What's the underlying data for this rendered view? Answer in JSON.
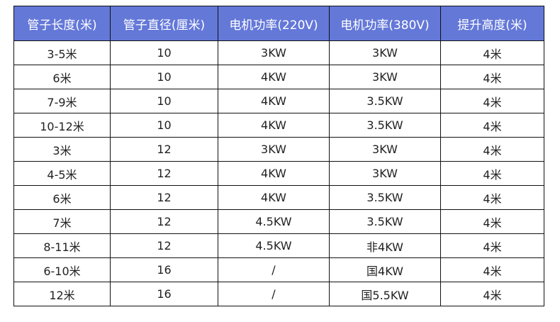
{
  "header_color": "#6478d8",
  "columns": [
    "管子长度(米)",
    "管子直径(厘米)",
    "电机功率(220V)",
    "电机功率(380V)",
    "提升高度(米)"
  ],
  "rows": [
    [
      "3-5米",
      "10",
      "3KW",
      "3KW",
      "4米"
    ],
    [
      "6米",
      "10",
      "4KW",
      "3KW",
      "4米"
    ],
    [
      "7-9米",
      "10",
      "4KW",
      "3.5KW",
      "4米"
    ],
    [
      "10-12米",
      "10",
      "4KW",
      "3.5KW",
      "4米"
    ],
    [
      "3米",
      "12",
      "3KW",
      "3KW",
      "4米"
    ],
    [
      "4-5米",
      "12",
      "4KW",
      "3KW",
      "4米"
    ],
    [
      "6米",
      "12",
      "4KW",
      "3.5KW",
      "4米"
    ],
    [
      "7米",
      "12",
      "4.5KW",
      "3.5KW",
      "4米"
    ],
    [
      "8-11米",
      "12",
      "4.5KW",
      "非4KW",
      "4米"
    ],
    [
      "6-10米",
      "16",
      "/",
      "国4KW",
      "4米"
    ],
    [
      "12米",
      "16",
      "/",
      "国5.5KW",
      "4米"
    ]
  ]
}
